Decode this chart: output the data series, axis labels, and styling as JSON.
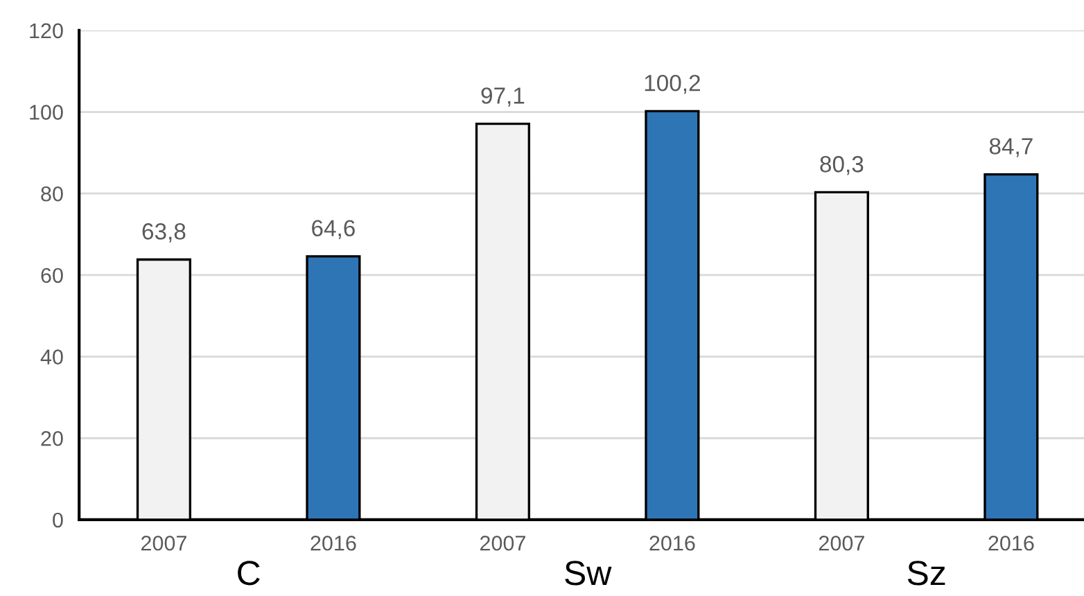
{
  "chart_data": {
    "type": "bar",
    "categories": [
      "2007",
      "2016",
      "2007",
      "2016",
      "2007",
      "2016"
    ],
    "values": [
      63.8,
      64.6,
      97.1,
      100.2,
      80.3,
      84.7
    ],
    "colors": [
      "#f2f2f2",
      "#2e75b6",
      "#f2f2f2",
      "#2e75b6",
      "#f2f2f2",
      "#2e75b6"
    ],
    "value_labels": [
      "63,8",
      "64,6",
      "97,1",
      "100,2",
      "80,3",
      "84,7"
    ],
    "annotations": [
      "C",
      "Sw",
      "Sz"
    ],
    "ylim": [
      0,
      120
    ],
    "yticks": [
      0,
      20,
      40,
      60,
      80,
      100,
      120
    ],
    "grid": "y"
  }
}
